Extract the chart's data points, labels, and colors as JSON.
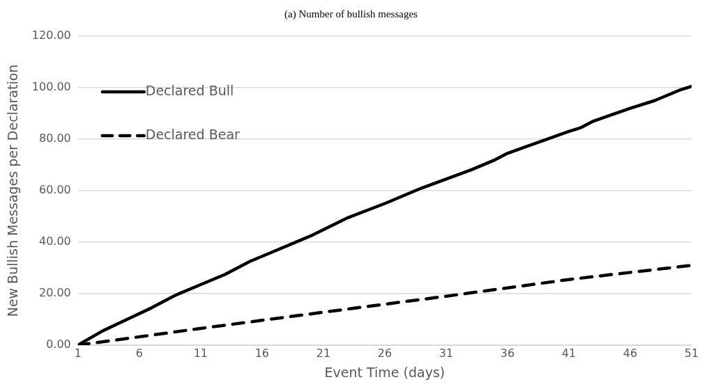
{
  "chart_data": {
    "type": "line",
    "title": "(a) Number of bullish messages",
    "xlabel": "Event Time (days)",
    "ylabel": "New Bullish Messages per Declaration",
    "series": [
      {
        "name": "Declared Bull",
        "color": "#000000",
        "line_style": "solid",
        "x": [
          1,
          3,
          5,
          7,
          9,
          11,
          13,
          15,
          17,
          19,
          20,
          23,
          26,
          29,
          31,
          33,
          35,
          36,
          41,
          42,
          43,
          46,
          48,
          50,
          51
        ],
        "values": [
          0,
          5.5,
          10,
          14.5,
          19.5,
          23.5,
          27.5,
          32.5,
          36.5,
          40.5,
          42.5,
          49.5,
          55,
          61,
          64.5,
          68,
          72,
          74.5,
          83,
          84.5,
          87,
          92,
          95,
          99,
          100.5
        ]
      },
      {
        "name": "Declared Bear",
        "color": "#000000",
        "line_style": "dashed",
        "x": [
          1,
          11,
          21,
          31,
          41,
          51
        ],
        "values": [
          0,
          6.5,
          12.8,
          19,
          25.5,
          31
        ]
      }
    ],
    "xlim": [
      1,
      51
    ],
    "xticks": [
      1,
      6,
      11,
      16,
      21,
      26,
      31,
      36,
      41,
      46,
      51
    ],
    "ylim": [
      0,
      120
    ],
    "yticks": [
      {
        "value": 0,
        "label": "0.00"
      },
      {
        "value": 20,
        "label": "20.00"
      },
      {
        "value": 40,
        "label": "40.00"
      },
      {
        "value": 60,
        "label": "60.00"
      },
      {
        "value": 80,
        "label": "80.00"
      },
      {
        "value": 100,
        "label": "100.00"
      },
      {
        "value": 120,
        "label": "120.00"
      }
    ],
    "grid": "y",
    "legend": "top left",
    "marker": "none"
  }
}
